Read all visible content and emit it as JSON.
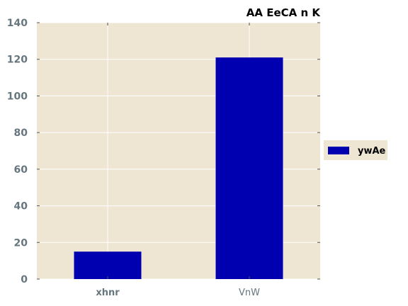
{
  "chart_data": {
    "type": "bar",
    "title": "AA EeCA n K",
    "xlabel": "",
    "ylabel": "",
    "categories": [
      "xhnr",
      "VnW"
    ],
    "series": [
      {
        "name": "ywAe",
        "values": [
          15,
          121
        ],
        "color": "#0000b0"
      }
    ],
    "ylim": [
      0,
      140
    ],
    "yticks": [
      0,
      20,
      40,
      60,
      80,
      100,
      120,
      140
    ],
    "grid": true,
    "legend_position": "right",
    "colors": {
      "plot_background": "#eee6d2",
      "grid": "#ffffff",
      "tick_label": "#66767f",
      "bar": "#0000b0"
    },
    "category_label_style": [
      "bold",
      "normal"
    ]
  }
}
